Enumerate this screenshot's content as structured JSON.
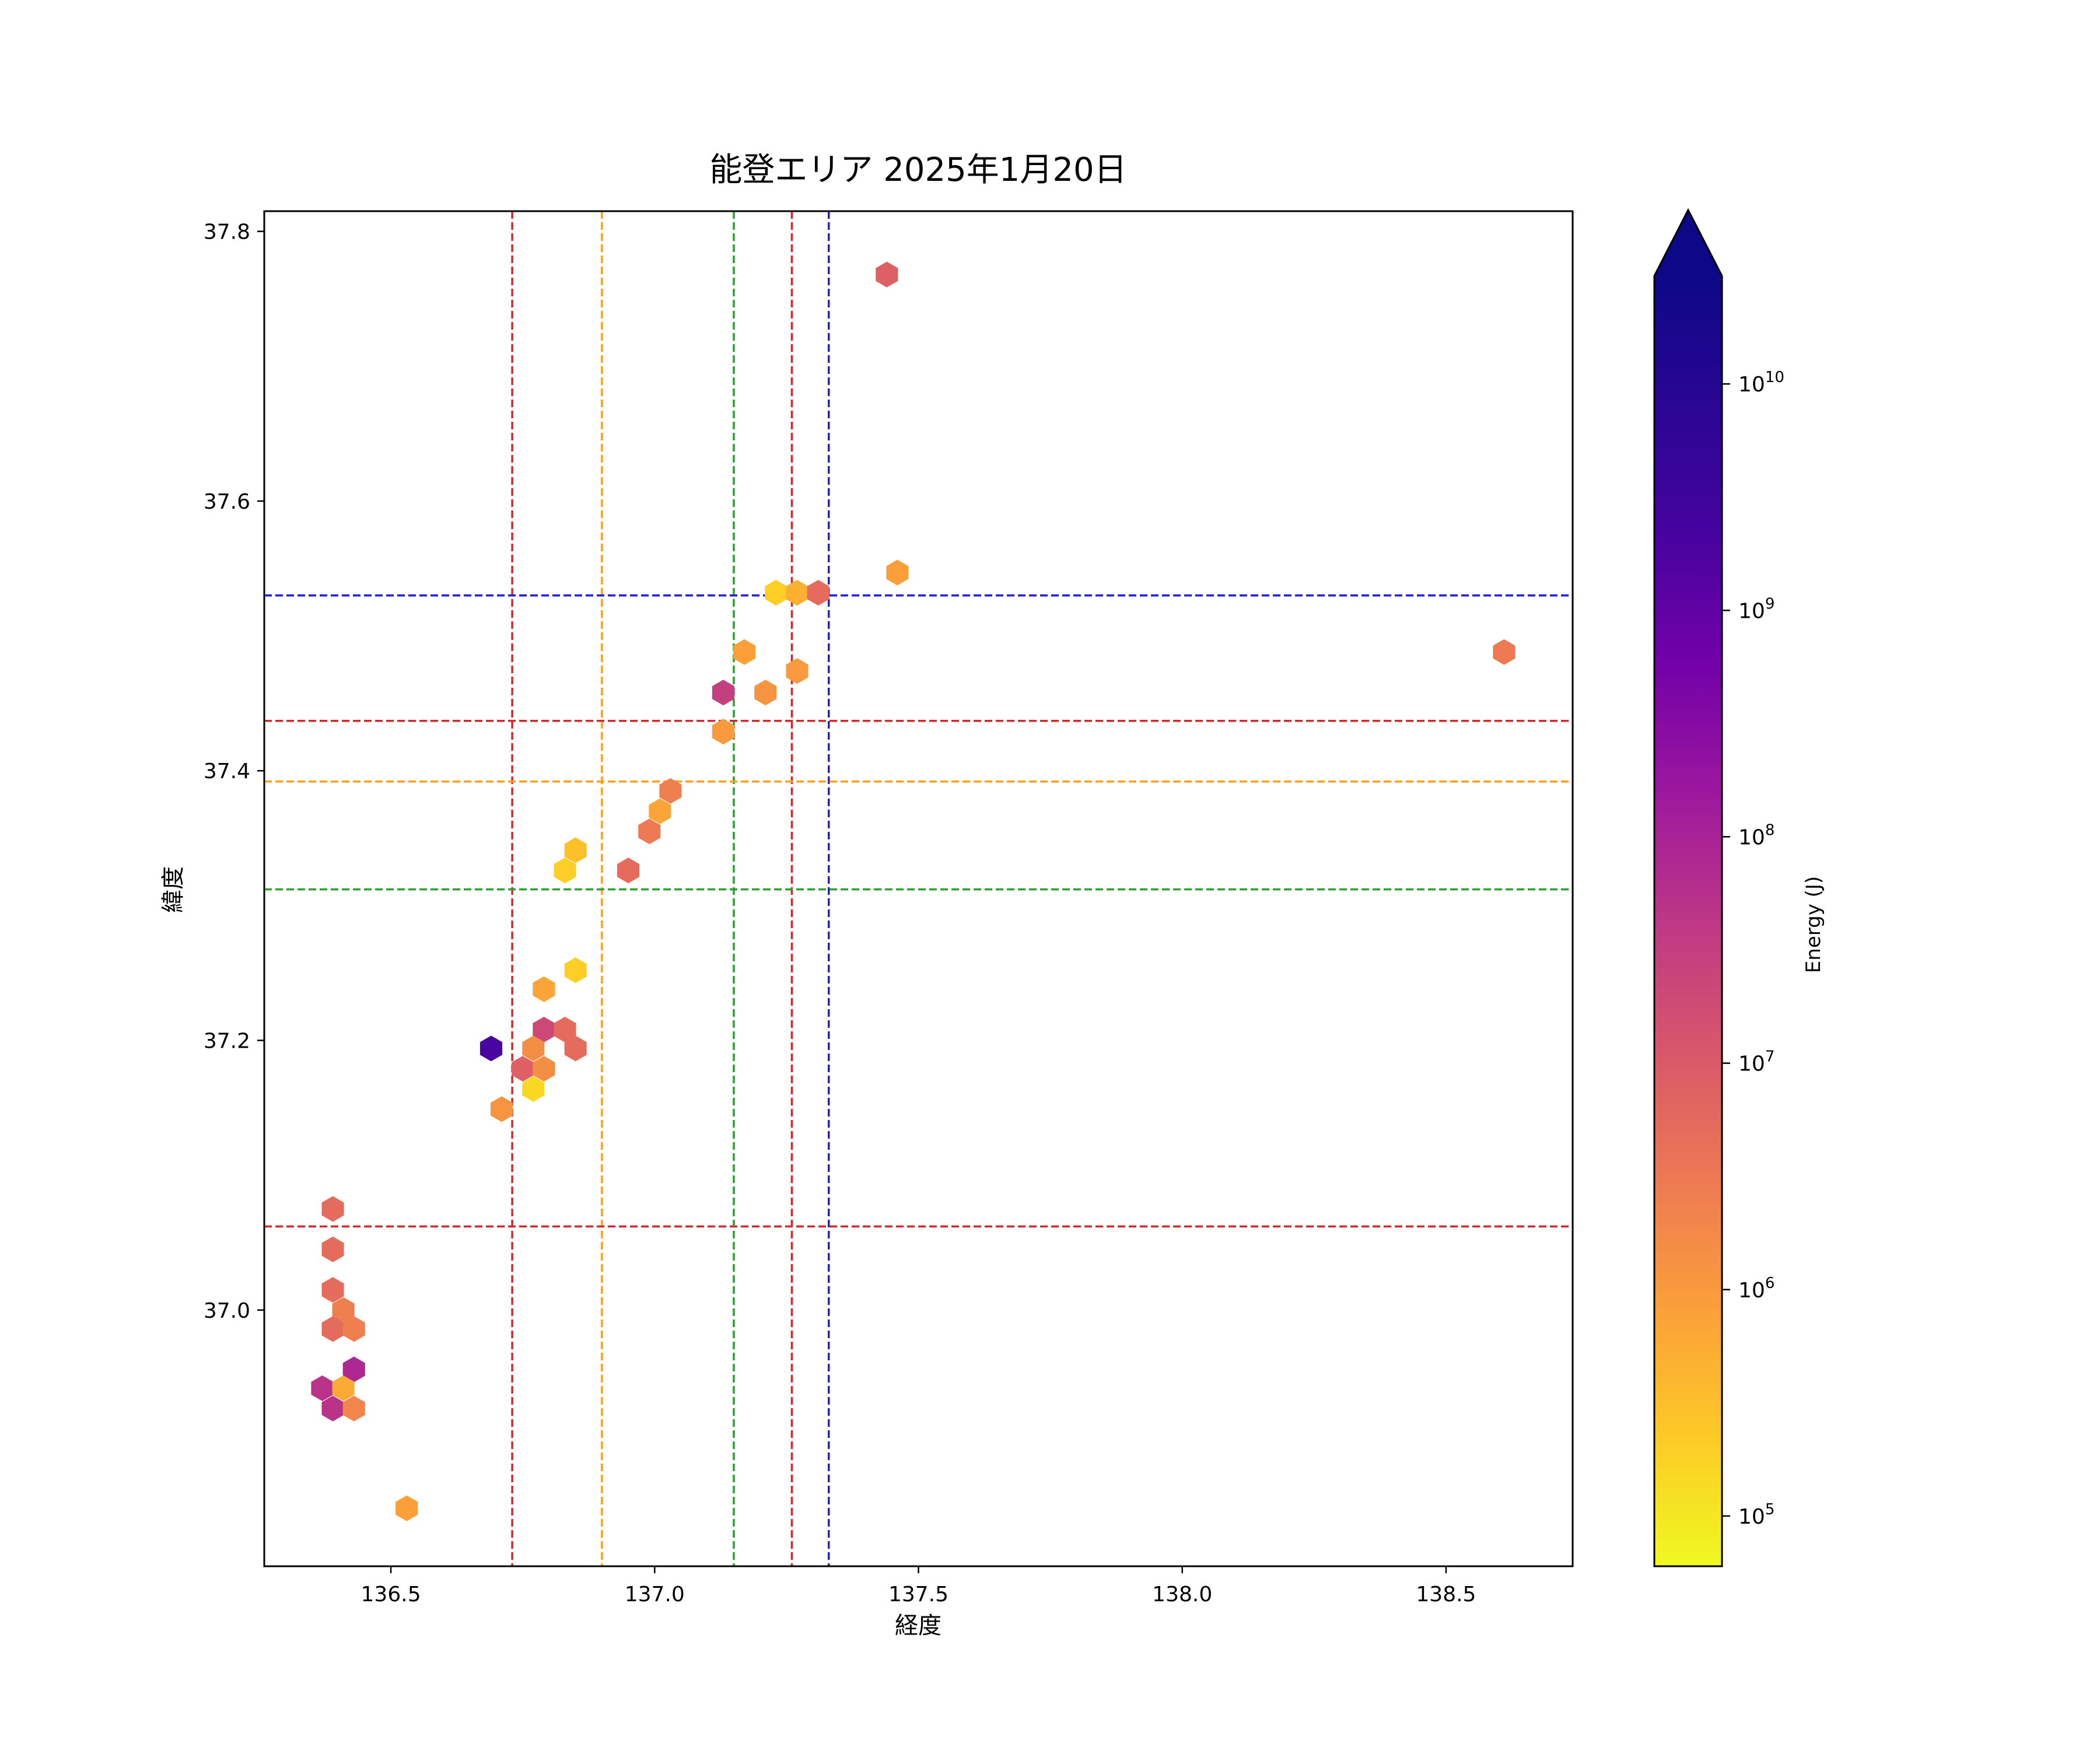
{
  "chart_data": {
    "type": "hexbin",
    "title": "能登エリア 2025年1月20日",
    "xlabel": "経度",
    "ylabel": "緯度",
    "xlim": [
      136.26,
      138.74
    ],
    "ylim": [
      36.81,
      37.815
    ],
    "xticks": [
      136.5,
      137.0,
      137.5,
      138.0,
      138.5
    ],
    "xtick_labels": [
      "136.5",
      "137.0",
      "137.5",
      "138.0",
      "138.5"
    ],
    "yticks": [
      37.0,
      37.2,
      37.4,
      37.6,
      37.8
    ],
    "ytick_labels": [
      "37.0",
      "37.2",
      "37.4",
      "37.6",
      "37.8"
    ],
    "grid": false,
    "colorbar": {
      "label": "Energy (J)",
      "scale": "log",
      "cmap": "plasma_r",
      "range": [
        60000,
        30000000000
      ],
      "extend": "max",
      "ticks": [
        100000,
        1000000,
        10000000,
        100000000,
        1000000000,
        10000000000
      ],
      "tick_bases": [
        "10",
        "10",
        "10",
        "10",
        "10",
        "10"
      ],
      "tick_exponents": [
        "5",
        "6",
        "7",
        "8",
        "9",
        "10"
      ]
    },
    "vlines": [
      {
        "x": 136.73,
        "color": "#d62728"
      },
      {
        "x": 136.9,
        "color": "#ff9f1c"
      },
      {
        "x": 137.15,
        "color": "#2ca02c"
      },
      {
        "x": 137.26,
        "color": "#d62728"
      },
      {
        "x": 137.33,
        "color": "#1f1fd6"
      }
    ],
    "hlines": [
      {
        "y": 37.53,
        "color": "#1f1fd6"
      },
      {
        "y": 37.437,
        "color": "#d62728"
      },
      {
        "y": 37.392,
        "color": "#ff9f1c"
      },
      {
        "y": 37.312,
        "color": "#2ca02c"
      },
      {
        "y": 37.062,
        "color": "#d62728"
      }
    ],
    "points": [
      {
        "x": 137.44,
        "y": 37.768,
        "energy": 8000000
      },
      {
        "x": 137.46,
        "y": 37.547,
        "energy": 800000
      },
      {
        "x": 137.23,
        "y": 37.532,
        "energy": 200000
      },
      {
        "x": 137.27,
        "y": 37.532,
        "energy": 500000
      },
      {
        "x": 137.31,
        "y": 37.532,
        "energy": 5000000
      },
      {
        "x": 138.61,
        "y": 37.488,
        "energy": 3000000
      },
      {
        "x": 137.17,
        "y": 37.488,
        "energy": 800000
      },
      {
        "x": 137.27,
        "y": 37.474,
        "energy": 1000000
      },
      {
        "x": 137.13,
        "y": 37.458,
        "energy": 30000000
      },
      {
        "x": 137.21,
        "y": 37.458,
        "energy": 1200000
      },
      {
        "x": 137.13,
        "y": 37.429,
        "energy": 1000000
      },
      {
        "x": 137.03,
        "y": 37.385,
        "energy": 2500000
      },
      {
        "x": 137.01,
        "y": 37.37,
        "energy": 700000
      },
      {
        "x": 136.99,
        "y": 37.355,
        "energy": 3000000
      },
      {
        "x": 136.85,
        "y": 37.341,
        "energy": 300000
      },
      {
        "x": 136.83,
        "y": 37.326,
        "energy": 200000
      },
      {
        "x": 136.95,
        "y": 37.326,
        "energy": 5000000
      },
      {
        "x": 136.85,
        "y": 37.252,
        "energy": 200000
      },
      {
        "x": 136.79,
        "y": 37.238,
        "energy": 700000
      },
      {
        "x": 136.79,
        "y": 37.208,
        "energy": 20000000
      },
      {
        "x": 136.83,
        "y": 37.208,
        "energy": 5000000
      },
      {
        "x": 136.69,
        "y": 37.194,
        "energy": 2000000000
      },
      {
        "x": 136.77,
        "y": 37.194,
        "energy": 1500000
      },
      {
        "x": 136.85,
        "y": 37.194,
        "energy": 5000000
      },
      {
        "x": 136.75,
        "y": 37.179,
        "energy": 8000000
      },
      {
        "x": 136.79,
        "y": 37.179,
        "energy": 1500000
      },
      {
        "x": 136.77,
        "y": 37.164,
        "energy": 150000
      },
      {
        "x": 136.71,
        "y": 37.149,
        "energy": 1200000
      },
      {
        "x": 136.39,
        "y": 37.075,
        "energy": 5000000
      },
      {
        "x": 136.39,
        "y": 37.045,
        "energy": 5000000
      },
      {
        "x": 136.39,
        "y": 37.015,
        "energy": 5000000
      },
      {
        "x": 136.41,
        "y": 37.0,
        "energy": 2500000
      },
      {
        "x": 136.39,
        "y": 36.986,
        "energy": 5000000
      },
      {
        "x": 136.43,
        "y": 36.986,
        "energy": 2500000
      },
      {
        "x": 136.43,
        "y": 36.956,
        "energy": 80000000
      },
      {
        "x": 136.37,
        "y": 36.942,
        "energy": 50000000
      },
      {
        "x": 136.41,
        "y": 36.942,
        "energy": 600000
      },
      {
        "x": 136.39,
        "y": 36.927,
        "energy": 50000000
      },
      {
        "x": 136.43,
        "y": 36.927,
        "energy": 2000000
      },
      {
        "x": 136.53,
        "y": 36.853,
        "energy": 800000
      }
    ]
  }
}
